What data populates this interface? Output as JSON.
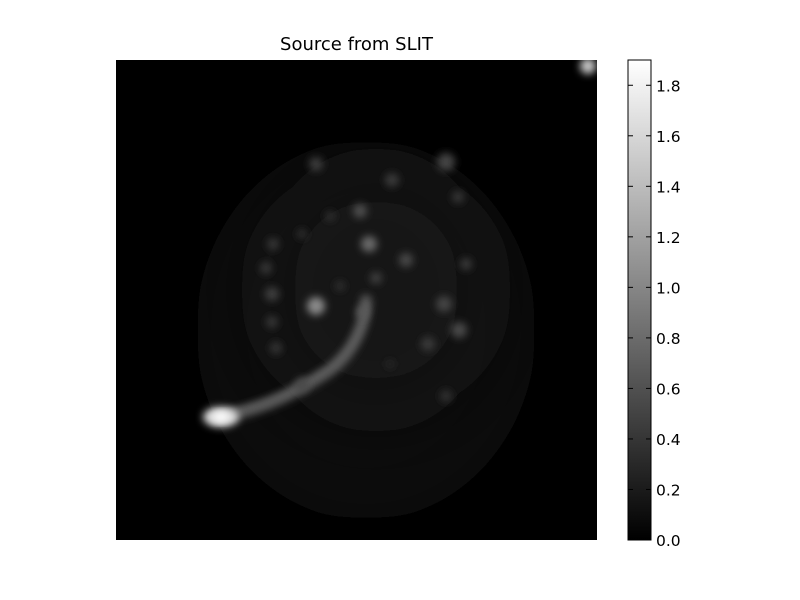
{
  "chart_data": {
    "type": "heatmap",
    "title": "Source from SLIT",
    "xlabel": "",
    "ylabel": "",
    "colormap": "gray",
    "vmin": 0.0,
    "vmax": 1.9,
    "colorbar": {
      "ticks": [
        0.0,
        0.2,
        0.4,
        0.6,
        0.8,
        1.0,
        1.2,
        1.4,
        1.6,
        1.8
      ],
      "tick_labels": [
        "0.0",
        "0.2",
        "0.4",
        "0.6",
        "0.8",
        "1.0",
        "1.2",
        "1.4",
        "1.6",
        "1.8"
      ]
    },
    "grid": false,
    "axes_visible": false
  }
}
